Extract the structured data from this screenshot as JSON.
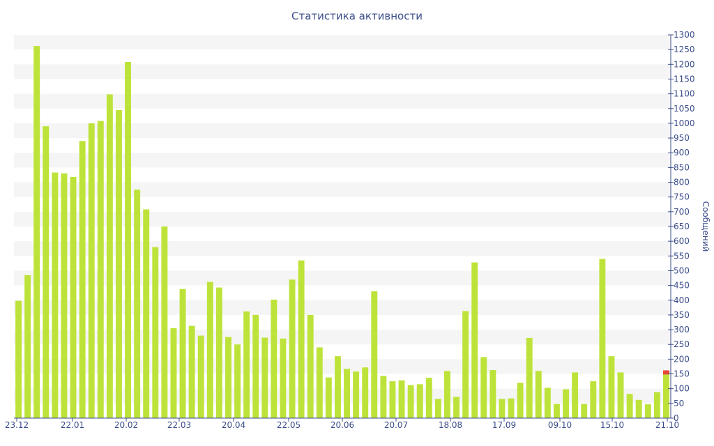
{
  "chart_data": {
    "type": "bar",
    "title": "Статистика активности",
    "xlabel": "",
    "ylabel": "Сообщений",
    "ylim": [
      0,
      1300
    ],
    "y_ticks": [
      0,
      50,
      100,
      150,
      200,
      250,
      300,
      350,
      400,
      450,
      500,
      550,
      600,
      650,
      700,
      750,
      800,
      850,
      900,
      950,
      1000,
      1050,
      1100,
      1150,
      1200,
      1250,
      1300
    ],
    "x_tick_labels": [
      "23.12",
      "22.01",
      "20.02",
      "22.03",
      "20.04",
      "22.05",
      "20.06",
      "20.07",
      "18.08",
      "17.09",
      "09.10",
      "15.10",
      "21.10"
    ],
    "grid": "horizontal alternating bands",
    "legend": "none",
    "colors": {
      "bar": "#bde33a",
      "highlight": "#e8463a",
      "axis": "#3b4d8a",
      "band": "#f5f5f5"
    },
    "values": [
      398,
      485,
      1262,
      990,
      833,
      830,
      818,
      940,
      1000,
      1008,
      1098,
      1045,
      1208,
      775,
      708,
      580,
      650,
      305,
      438,
      313,
      280,
      462,
      443,
      275,
      250,
      362,
      350,
      273,
      402,
      270,
      470,
      535,
      350,
      240,
      138,
      210,
      167,
      158,
      172,
      430,
      143,
      125,
      128,
      112,
      115,
      137,
      65,
      160,
      72,
      363,
      528,
      207,
      163,
      65,
      67,
      120,
      272,
      160,
      103,
      48,
      98,
      155,
      48,
      125,
      540,
      210,
      155,
      82,
      62,
      47,
      88,
      162
    ],
    "highlight_last": 14
  }
}
